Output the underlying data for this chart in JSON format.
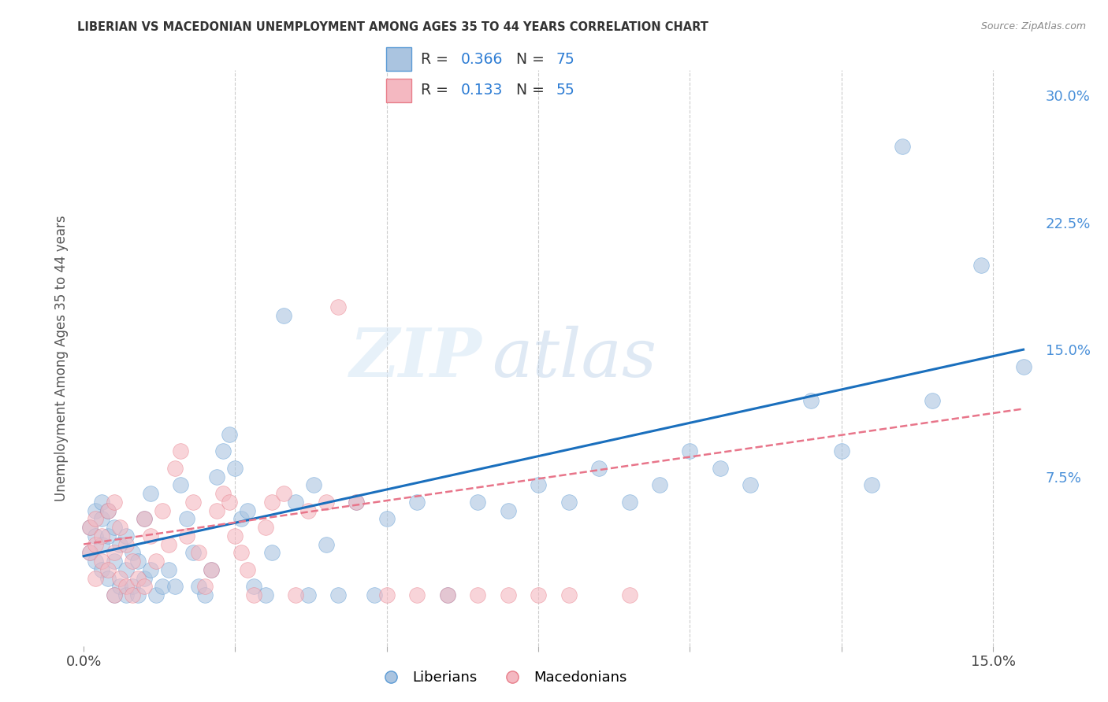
{
  "title": "LIBERIAN VS MACEDONIAN UNEMPLOYMENT AMONG AGES 35 TO 44 YEARS CORRELATION CHART",
  "source": "Source: ZipAtlas.com",
  "ylabel": "Unemployment Among Ages 35 to 44 years",
  "xlim": [
    -0.001,
    0.158
  ],
  "ylim": [
    -0.025,
    0.315
  ],
  "liberian_color": "#aac4e0",
  "macedonian_color": "#f4b8c1",
  "liberian_edge_color": "#5b9bd5",
  "macedonian_edge_color": "#e87e8a",
  "liberian_line_color": "#1a6fbd",
  "macedonian_line_color": "#e8758a",
  "legend_R_liberian": "0.366",
  "legend_N_liberian": "75",
  "legend_R_macedonian": "0.133",
  "legend_N_macedonian": "55",
  "watermark_zip": "ZIP",
  "watermark_atlas": "atlas",
  "liberian_x": [
    0.001,
    0.001,
    0.002,
    0.002,
    0.002,
    0.003,
    0.003,
    0.003,
    0.003,
    0.004,
    0.004,
    0.004,
    0.005,
    0.005,
    0.005,
    0.006,
    0.006,
    0.007,
    0.007,
    0.007,
    0.008,
    0.008,
    0.009,
    0.009,
    0.01,
    0.01,
    0.011,
    0.011,
    0.012,
    0.013,
    0.014,
    0.015,
    0.016,
    0.017,
    0.018,
    0.019,
    0.02,
    0.021,
    0.022,
    0.023,
    0.024,
    0.025,
    0.026,
    0.027,
    0.028,
    0.03,
    0.031,
    0.033,
    0.035,
    0.037,
    0.038,
    0.04,
    0.042,
    0.045,
    0.048,
    0.05,
    0.055,
    0.06,
    0.065,
    0.07,
    0.075,
    0.08,
    0.085,
    0.09,
    0.095,
    0.1,
    0.105,
    0.11,
    0.12,
    0.125,
    0.13,
    0.135,
    0.14,
    0.148,
    0.155
  ],
  "liberian_y": [
    0.03,
    0.045,
    0.025,
    0.04,
    0.055,
    0.02,
    0.035,
    0.05,
    0.06,
    0.015,
    0.04,
    0.055,
    0.005,
    0.025,
    0.045,
    0.01,
    0.035,
    0.005,
    0.02,
    0.04,
    0.01,
    0.03,
    0.005,
    0.025,
    0.015,
    0.05,
    0.02,
    0.065,
    0.005,
    0.01,
    0.02,
    0.01,
    0.07,
    0.05,
    0.03,
    0.01,
    0.005,
    0.02,
    0.075,
    0.09,
    0.1,
    0.08,
    0.05,
    0.055,
    0.01,
    0.005,
    0.03,
    0.17,
    0.06,
    0.005,
    0.07,
    0.035,
    0.005,
    0.06,
    0.005,
    0.05,
    0.06,
    0.005,
    0.06,
    0.055,
    0.07,
    0.06,
    0.08,
    0.06,
    0.07,
    0.09,
    0.08,
    0.07,
    0.12,
    0.09,
    0.07,
    0.27,
    0.12,
    0.2,
    0.14
  ],
  "macedonian_x": [
    0.001,
    0.001,
    0.002,
    0.002,
    0.002,
    0.003,
    0.003,
    0.004,
    0.004,
    0.005,
    0.005,
    0.005,
    0.006,
    0.006,
    0.007,
    0.007,
    0.008,
    0.008,
    0.009,
    0.01,
    0.01,
    0.011,
    0.012,
    0.013,
    0.014,
    0.015,
    0.016,
    0.017,
    0.018,
    0.019,
    0.02,
    0.021,
    0.022,
    0.023,
    0.024,
    0.025,
    0.026,
    0.027,
    0.028,
    0.03,
    0.031,
    0.033,
    0.035,
    0.037,
    0.04,
    0.042,
    0.045,
    0.05,
    0.055,
    0.06,
    0.065,
    0.07,
    0.075,
    0.08,
    0.09
  ],
  "macedonian_y": [
    0.03,
    0.045,
    0.015,
    0.035,
    0.05,
    0.025,
    0.04,
    0.02,
    0.055,
    0.005,
    0.03,
    0.06,
    0.015,
    0.045,
    0.01,
    0.035,
    0.005,
    0.025,
    0.015,
    0.01,
    0.05,
    0.04,
    0.025,
    0.055,
    0.035,
    0.08,
    0.09,
    0.04,
    0.06,
    0.03,
    0.01,
    0.02,
    0.055,
    0.065,
    0.06,
    0.04,
    0.03,
    0.02,
    0.005,
    0.045,
    0.06,
    0.065,
    0.005,
    0.055,
    0.06,
    0.175,
    0.06,
    0.005,
    0.005,
    0.005,
    0.005,
    0.005,
    0.005,
    0.005,
    0.005
  ],
  "lib_trend_x0": 0.0,
  "lib_trend_y0": 0.028,
  "lib_trend_x1": 0.155,
  "lib_trend_y1": 0.15,
  "mac_trend_x0": 0.0,
  "mac_trend_y0": 0.035,
  "mac_trend_x1": 0.155,
  "mac_trend_y1": 0.115
}
